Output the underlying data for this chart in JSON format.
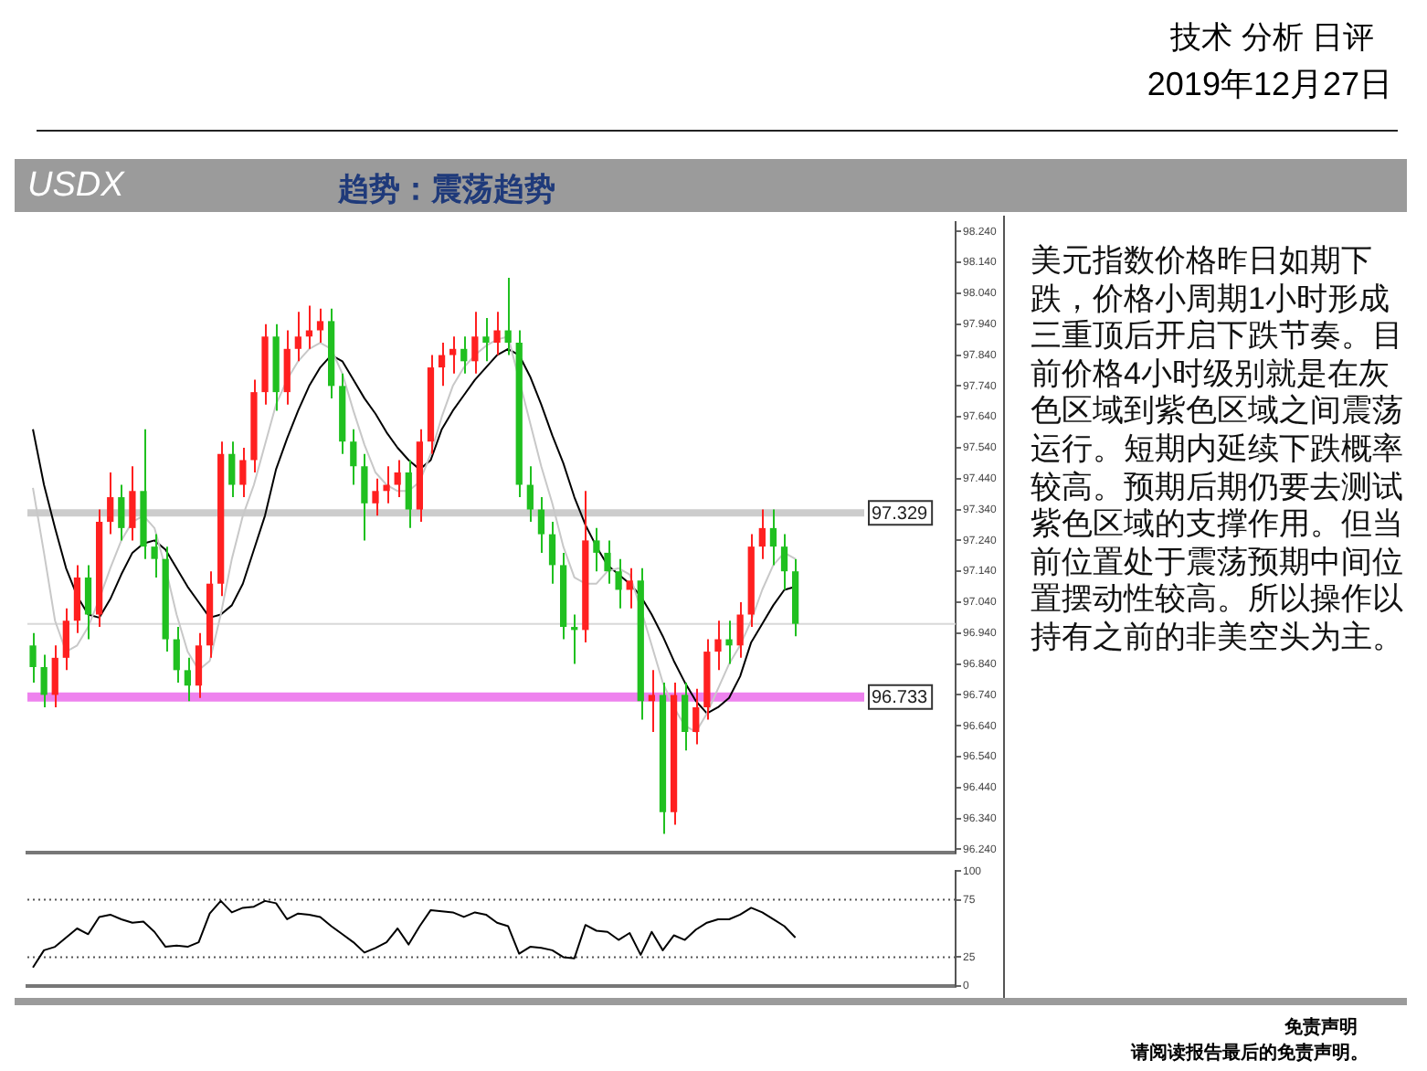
{
  "chart_data": [
    {
      "type": "candlestick",
      "title": "USDX",
      "subtitle": "趋势：震荡趋势",
      "annotations": [
        "技术 分析 日评",
        "2019年12月27日",
        "免责声明",
        "请阅读报告最后的免责声明。"
      ],
      "categories": [
        null,
        null,
        null,
        null,
        null,
        null,
        null,
        null,
        null,
        null,
        null,
        null,
        null,
        null,
        null,
        null,
        null,
        null,
        null,
        null,
        null,
        null,
        null,
        null,
        null,
        null,
        null,
        null,
        null,
        null,
        null,
        null,
        null,
        null,
        null,
        null,
        null,
        null,
        null,
        null,
        null,
        null,
        null,
        null,
        null,
        null,
        null,
        null,
        null,
        null,
        null,
        null,
        null,
        null,
        null,
        null,
        null,
        null,
        null,
        null,
        null,
        null,
        null,
        null,
        null,
        null,
        null,
        null,
        null,
        null,
        null,
        null,
        null,
        null,
        null,
        null,
        null,
        null,
        null,
        null,
        null,
        null,
        null,
        null
      ],
      "ohlc": [
        [
          96.9,
          96.94,
          96.78,
          96.83
        ],
        [
          96.83,
          96.87,
          96.7,
          96.74
        ],
        [
          96.74,
          96.9,
          96.7,
          96.86
        ],
        [
          96.86,
          97.02,
          96.82,
          96.98
        ],
        [
          96.98,
          97.16,
          96.94,
          97.12
        ],
        [
          97.12,
          97.16,
          96.92,
          97.0
        ],
        [
          97.0,
          97.34,
          96.96,
          97.3
        ],
        [
          97.3,
          97.46,
          97.26,
          97.38
        ],
        [
          97.38,
          97.42,
          97.24,
          97.28
        ],
        [
          97.28,
          97.48,
          97.24,
          97.4
        ],
        [
          97.4,
          97.6,
          97.18,
          97.22
        ],
        [
          97.22,
          97.26,
          97.12,
          97.18
        ],
        [
          97.18,
          97.22,
          96.88,
          96.92
        ],
        [
          96.92,
          96.96,
          96.78,
          96.82
        ],
        [
          96.82,
          96.86,
          96.72,
          96.77
        ],
        [
          96.77,
          96.94,
          96.73,
          96.9
        ],
        [
          96.9,
          97.14,
          96.86,
          97.1
        ],
        [
          97.1,
          97.56,
          97.06,
          97.52
        ],
        [
          97.52,
          97.56,
          97.38,
          97.42
        ],
        [
          97.42,
          97.54,
          97.38,
          97.5
        ],
        [
          97.5,
          97.76,
          97.46,
          97.72
        ],
        [
          97.72,
          97.94,
          97.68,
          97.9
        ],
        [
          97.9,
          97.94,
          97.66,
          97.72
        ],
        [
          97.72,
          97.92,
          97.68,
          97.86
        ],
        [
          97.86,
          97.98,
          97.82,
          97.9
        ],
        [
          97.9,
          98.0,
          97.86,
          97.92
        ],
        [
          97.92,
          97.99,
          97.88,
          97.95
        ],
        [
          97.95,
          97.99,
          97.7,
          97.74
        ],
        [
          97.74,
          97.78,
          97.52,
          97.56
        ],
        [
          97.56,
          97.6,
          97.42,
          97.48
        ],
        [
          97.48,
          97.52,
          97.24,
          97.36
        ],
        [
          97.36,
          97.44,
          97.32,
          97.4
        ],
        [
          97.4,
          97.48,
          97.36,
          97.42
        ],
        [
          97.42,
          97.5,
          97.38,
          97.46
        ],
        [
          97.46,
          97.5,
          97.28,
          97.34
        ],
        [
          97.34,
          97.6,
          97.3,
          97.56
        ],
        [
          97.56,
          97.84,
          97.52,
          97.8
        ],
        [
          97.8,
          97.88,
          97.74,
          97.84
        ],
        [
          97.84,
          97.9,
          97.78,
          97.86
        ],
        [
          97.86,
          97.9,
          97.78,
          97.82
        ],
        [
          97.82,
          97.98,
          97.78,
          97.9
        ],
        [
          97.9,
          97.96,
          97.82,
          97.88
        ],
        [
          97.88,
          97.98,
          97.84,
          97.92
        ],
        [
          97.92,
          98.09,
          97.84,
          97.88
        ],
        [
          97.88,
          97.92,
          97.38,
          97.42
        ],
        [
          97.42,
          97.48,
          97.3,
          97.34
        ],
        [
          97.34,
          97.38,
          97.2,
          97.26
        ],
        [
          97.26,
          97.3,
          97.1,
          97.16
        ],
        [
          97.16,
          97.2,
          96.92,
          96.96
        ],
        [
          96.96,
          97.0,
          96.84,
          96.95
        ],
        [
          96.95,
          97.4,
          96.91,
          97.24
        ],
        [
          97.24,
          97.28,
          97.14,
          97.2
        ],
        [
          97.2,
          97.24,
          97.1,
          97.14
        ],
        [
          97.14,
          97.18,
          97.02,
          97.08
        ],
        [
          97.08,
          97.15,
          97.02,
          97.11
        ],
        [
          97.11,
          97.15,
          96.66,
          96.72
        ],
        [
          96.72,
          96.82,
          96.62,
          96.74
        ],
        [
          96.74,
          96.78,
          96.29,
          96.36
        ],
        [
          96.36,
          96.78,
          96.32,
          96.74
        ],
        [
          96.74,
          96.78,
          96.56,
          96.62
        ],
        [
          96.62,
          96.76,
          96.58,
          96.7
        ],
        [
          96.7,
          96.92,
          96.66,
          96.88
        ],
        [
          96.88,
          96.98,
          96.82,
          96.92
        ],
        [
          96.92,
          96.98,
          96.84,
          96.9
        ],
        [
          96.9,
          97.04,
          96.86,
          97.0
        ],
        [
          97.0,
          97.26,
          96.96,
          97.22
        ],
        [
          97.22,
          97.34,
          97.18,
          97.28
        ],
        [
          97.28,
          97.34,
          97.16,
          97.22
        ],
        [
          97.22,
          97.26,
          97.08,
          97.14
        ],
        [
          97.14,
          97.18,
          96.93,
          96.97
        ],
        null,
        null,
        null,
        null,
        null,
        null,
        null,
        null,
        null,
        null,
        null,
        null,
        null,
        null
      ],
      "series": [
        {
          "type": "line",
          "color": "#c8c8c8",
          "values": [
            97.41,
            97.2,
            96.98,
            96.88,
            96.9,
            96.96,
            97.05,
            97.15,
            97.24,
            97.3,
            97.32,
            97.28,
            97.15,
            97.0,
            96.88,
            96.82,
            96.85,
            97.0,
            97.18,
            97.32,
            97.42,
            97.55,
            97.68,
            97.76,
            97.82,
            97.86,
            97.88,
            97.86,
            97.78,
            97.66,
            97.55,
            97.46,
            97.42,
            97.4,
            97.4,
            97.43,
            97.52,
            97.64,
            97.74,
            97.8,
            97.84,
            97.87,
            97.89,
            97.9,
            97.76,
            97.62,
            97.48,
            97.36,
            97.22,
            97.12,
            97.1,
            97.1,
            97.14,
            97.15,
            97.13,
            97.02,
            96.9,
            96.78,
            96.7,
            96.64,
            96.62,
            96.68,
            96.76,
            96.84,
            96.9,
            96.98,
            97.08,
            97.16,
            97.2,
            97.18,
            null,
            null,
            null,
            null,
            null,
            null,
            null,
            null,
            null,
            null,
            null,
            null,
            null,
            null
          ]
        },
        {
          "type": "line",
          "color": "#000000",
          "values": [
            97.6,
            97.42,
            97.28,
            97.15,
            97.06,
            97.0,
            96.99,
            97.05,
            97.13,
            97.2,
            97.23,
            97.24,
            97.21,
            97.15,
            97.09,
            97.04,
            96.99,
            97.0,
            97.03,
            97.1,
            97.21,
            97.32,
            97.47,
            97.57,
            97.66,
            97.74,
            97.8,
            97.84,
            97.82,
            97.76,
            97.7,
            97.65,
            97.59,
            97.54,
            97.5,
            97.47,
            97.5,
            97.6,
            97.66,
            97.71,
            97.76,
            97.8,
            97.84,
            97.86,
            97.84,
            97.77,
            97.68,
            97.58,
            97.49,
            97.38,
            97.29,
            97.22,
            97.16,
            97.13,
            97.1,
            97.06,
            97.0,
            96.93,
            96.85,
            96.78,
            96.72,
            96.68,
            96.7,
            96.73,
            96.8,
            96.91,
            96.97,
            97.03,
            97.08,
            97.09,
            null,
            null,
            null,
            null,
            null,
            null,
            null,
            null,
            null,
            null,
            null,
            null,
            null,
            null
          ]
        }
      ],
      "ylim": [
        96.23,
        98.27
      ],
      "yticks": [
        {
          "value": 96.24,
          "label": "96.240"
        },
        {
          "value": 96.34,
          "label": "96.340"
        },
        {
          "value": 96.44,
          "label": "96.440"
        },
        {
          "value": 96.54,
          "label": "96.540"
        },
        {
          "value": 96.64,
          "label": "96.640"
        },
        {
          "value": 96.74,
          "label": "96.740"
        },
        {
          "value": 96.84,
          "label": "96.840"
        },
        {
          "value": 96.94,
          "label": "96.940"
        },
        {
          "value": 97.04,
          "label": "97.040"
        },
        {
          "value": 97.14,
          "label": "97.140"
        },
        {
          "value": 97.24,
          "label": "97.240"
        },
        {
          "value": 97.34,
          "label": "97.340"
        },
        {
          "value": 97.44,
          "label": "97.440"
        },
        {
          "value": 97.54,
          "label": "97.540"
        },
        {
          "value": 97.64,
          "label": "97.640"
        },
        {
          "value": 97.74,
          "label": "97.740"
        },
        {
          "value": 97.84,
          "label": "97.840"
        },
        {
          "value": 97.94,
          "label": "97.940"
        },
        {
          "value": 98.04,
          "label": "98.040"
        },
        {
          "value": 98.14,
          "label": "98.140"
        },
        {
          "value": 98.24,
          "label": "98.240"
        }
      ],
      "ref_lines": [
        {
          "axis": "y",
          "value": 97.329,
          "label": "97.329",
          "color": "#cccccc"
        },
        {
          "axis": "y",
          "value": 96.733,
          "label": "96.733",
          "color": "#ee82ee"
        },
        {
          "axis": "y",
          "value": 96.97,
          "color": "#d8d8d8"
        }
      ],
      "tick_labels": "y",
      "legend": false,
      "grid": false,
      "marker": "none"
    },
    {
      "type": "line",
      "categories": [
        null,
        null,
        null,
        null,
        null,
        null,
        null,
        null,
        null,
        null,
        null,
        null,
        null,
        null,
        null,
        null,
        null,
        null,
        null,
        null,
        null,
        null,
        null,
        null,
        null,
        null,
        null,
        null,
        null,
        null,
        null,
        null,
        null,
        null,
        null,
        null,
        null,
        null,
        null,
        null,
        null,
        null,
        null,
        null,
        null,
        null,
        null,
        null,
        null,
        null,
        null,
        null,
        null,
        null,
        null,
        null,
        null,
        null,
        null,
        null,
        null,
        null,
        null,
        null,
        null,
        null,
        null,
        null,
        null,
        null,
        null,
        null,
        null,
        null,
        null,
        null,
        null,
        null,
        null,
        null,
        null,
        null,
        null,
        null
      ],
      "series": [
        {
          "color": "#000000",
          "values": [
            16,
            31,
            34,
            42,
            50,
            45,
            60,
            62,
            58,
            55,
            56,
            47,
            34,
            35,
            34,
            38,
            63,
            74,
            64,
            68,
            69,
            74,
            72,
            58,
            63,
            62,
            60,
            52,
            45,
            38,
            29,
            33,
            38,
            50,
            36,
            52,
            66,
            65,
            64,
            60,
            64,
            62,
            55,
            52,
            28,
            34,
            33,
            31,
            25,
            24,
            53,
            48,
            47,
            40,
            46,
            27,
            47,
            31,
            44,
            40,
            49,
            55,
            58,
            58,
            62,
            68,
            64,
            58,
            52,
            42,
            null,
            null,
            null,
            null,
            null,
            null,
            null,
            null,
            null,
            null,
            null,
            null,
            null,
            null
          ]
        }
      ],
      "ylim": [
        0,
        100
      ],
      "yticks": [
        0,
        25,
        75,
        100
      ],
      "ref_lines": [
        {
          "axis": "y",
          "value": 25,
          "line_style": "dotted",
          "color": "#555555"
        },
        {
          "axis": "y",
          "value": 75,
          "line_style": "dotted",
          "color": "#555555"
        }
      ],
      "tick_labels": "y",
      "legend": false,
      "grid": false,
      "marker": "none"
    },
    {
      "type": "other",
      "annotations": [
        "美元指数价格昨日如期下跌，价格小周期1小时形成三重顶后开启下跌节奏。目前价格4小时级别就是在灰色区域到紫色区域之间震荡运行。短期内延续下跌概率较高。预期后期仍要去测试紫色区域的支撑作用。但当前位置处于震荡预期中间位置摆动性较高。所以操作以持有之前的非美空头为主。"
      ]
    }
  ]
}
